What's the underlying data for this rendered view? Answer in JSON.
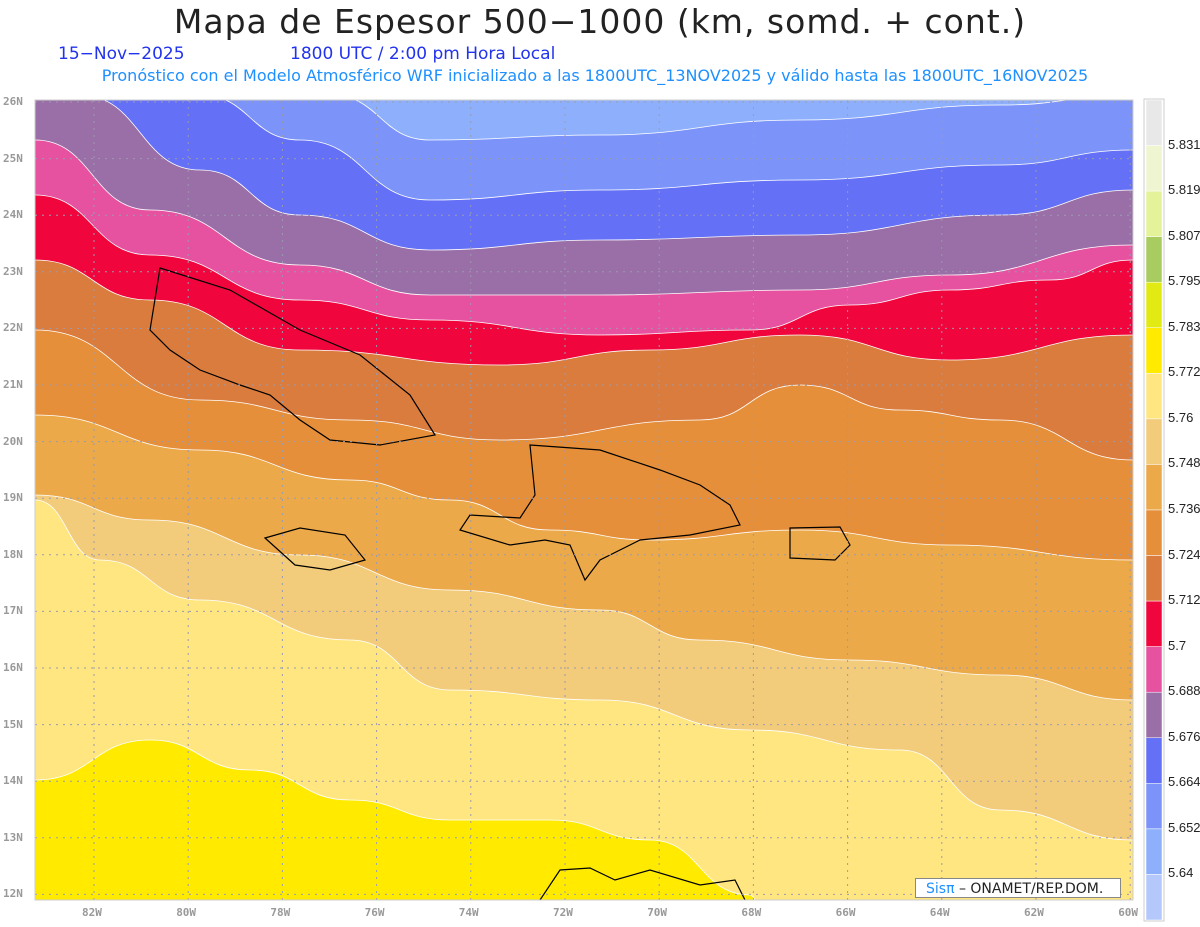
{
  "header": {
    "title": "Mapa de Espesor 500−1000 (km, somd. + cont.)",
    "date": "15−Nov−2025",
    "time": "1800 UTC / 2:00 pm Hora Local",
    "description": "Pronóstico con el Modelo Atmosférico WRF inicializado a las 1800UTC_13NOV2025 y válido hasta las  1800UTC_16NOV2025"
  },
  "map": {
    "lat_labels": [
      "26N",
      "25N",
      "24N",
      "23N",
      "22N",
      "21N",
      "20N",
      "19N",
      "18N",
      "17N",
      "16N",
      "15N",
      "14N",
      "13N",
      "12N"
    ],
    "lon_labels": [
      "82W",
      "80W",
      "78W",
      "76W",
      "74W",
      "72W",
      "70W",
      "68W",
      "66W",
      "64W",
      "62W",
      "60W"
    ],
    "credit_brand": "Sisπ",
    "credit_text": "– ONAMET/REP.DOM."
  },
  "colorbar": {
    "labels": [
      "5.831",
      "5.819",
      "5.807",
      "5.795",
      "5.783",
      "5.772",
      "5.76",
      "5.748",
      "5.736",
      "5.724",
      "5.712",
      "5.7",
      "5.688",
      "5.676",
      "5.664",
      "5.652",
      "5.64"
    ],
    "colors": [
      "#e8e8e8",
      "#eef5d0",
      "#e4f29a",
      "#a8cc60",
      "#e2ea14",
      "#ffea00",
      "#ffe680",
      "#f2cc7a",
      "#eba94a",
      "#e58f3a",
      "#d97c3e",
      "#f0063c",
      "#e652a0",
      "#9a6ea6",
      "#6470f6",
      "#7c94fa",
      "#8eb0fc",
      "#b4c8fc"
    ]
  }
}
